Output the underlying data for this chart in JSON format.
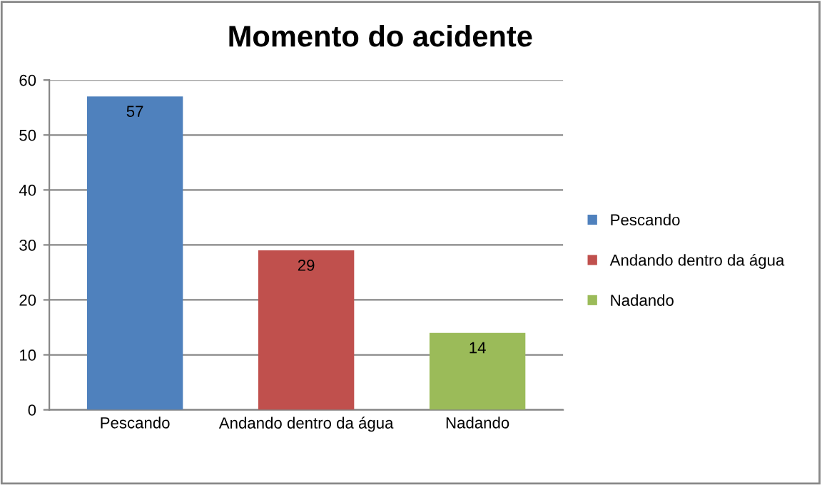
{
  "chart_data": {
    "type": "bar",
    "title": "Momento do acidente",
    "categories": [
      "Pescando",
      "Andando dentro da água",
      "Nadando"
    ],
    "series": [
      {
        "name": "Pescando",
        "color": "#4f81bd",
        "values": [
          57,
          null,
          null
        ]
      },
      {
        "name": "Andando dentro da água",
        "color": "#c0504d",
        "values": [
          null,
          29,
          null
        ]
      },
      {
        "name": "Nadando",
        "color": "#9bbb59",
        "values": [
          null,
          null,
          14
        ]
      }
    ],
    "stacked": true,
    "ylim": [
      0,
      60
    ],
    "yticks": [
      0,
      10,
      20,
      30,
      40,
      50,
      60
    ],
    "grid": "y",
    "legend": "right",
    "data_labels": true
  }
}
